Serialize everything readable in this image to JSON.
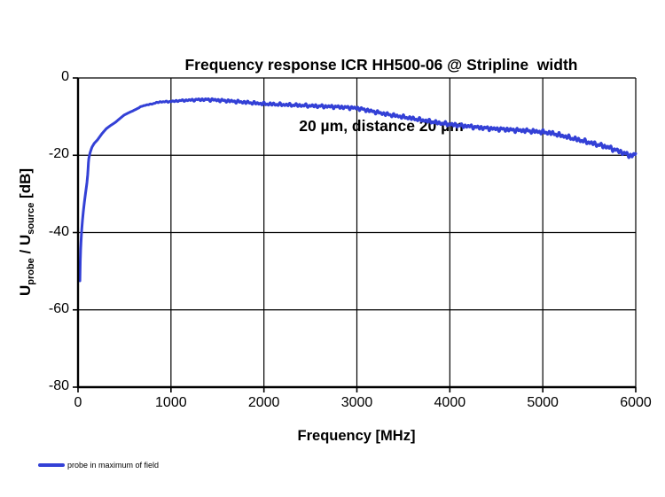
{
  "title": {
    "line1": "Frequency response ICR HH500-06 @ Stripline  width",
    "line2": "20 µm, distance 20 µm"
  },
  "axes": {
    "x_label": "Frequency [MHz]",
    "y_label_parts": [
      {
        "text": "U"
      },
      {
        "text": "probe",
        "sub": true
      },
      {
        "text": " / U"
      },
      {
        "text": "source",
        "sub": true
      },
      {
        "text": " [dB]"
      }
    ]
  },
  "legend": [
    {
      "label": "probe in maximum of field",
      "color": "#3340D6"
    }
  ],
  "colors": {
    "series_blue": "#3340D6",
    "axis_black": "#000000",
    "background": "#ffffff"
  },
  "chart_data": {
    "type": "line",
    "title": "Frequency response ICR HH500-06 @ Stripline width 20 µm, distance 20 µm",
    "xlabel": "Frequency [MHz]",
    "ylabel": "U_probe / U_source [dB]",
    "xlim": [
      0,
      6000
    ],
    "ylim": [
      -80,
      0
    ],
    "x_ticks": [
      0,
      1000,
      2000,
      3000,
      4000,
      5000,
      6000
    ],
    "y_ticks": [
      0,
      -20,
      -40,
      -60,
      -80
    ],
    "grid": true,
    "legend_position": "bottom-left",
    "series": [
      {
        "name": "probe in maximum of field",
        "color": "#3340D6",
        "points": [
          [
            20,
            -52.5
          ],
          [
            24,
            -47.5
          ],
          [
            28,
            -44.5
          ],
          [
            33,
            -42.0
          ],
          [
            40,
            -39.2
          ],
          [
            48,
            -36.8
          ],
          [
            58,
            -34.3
          ],
          [
            70,
            -31.8
          ],
          [
            82,
            -29.6
          ],
          [
            95,
            -27.3
          ],
          [
            105,
            -24.8
          ],
          [
            114,
            -21.1
          ],
          [
            130,
            -19.3
          ],
          [
            150,
            -17.9
          ],
          [
            175,
            -16.9
          ],
          [
            210,
            -16.0
          ],
          [
            258,
            -14.4
          ],
          [
            305,
            -13.1
          ],
          [
            350,
            -12.3
          ],
          [
            401,
            -11.5
          ],
          [
            450,
            -10.5
          ],
          [
            496,
            -9.6
          ],
          [
            545,
            -9.0
          ],
          [
            591,
            -8.5
          ],
          [
            640,
            -7.9
          ],
          [
            687,
            -7.3
          ],
          [
            735,
            -7.0
          ],
          [
            780,
            -6.8
          ],
          [
            830,
            -6.5
          ],
          [
            878,
            -6.2
          ],
          [
            940,
            -6.15
          ],
          [
            1000,
            -6.1
          ],
          [
            1080,
            -5.9
          ],
          [
            1150,
            -5.8
          ],
          [
            1230,
            -5.7
          ],
          [
            1300,
            -5.6
          ],
          [
            1380,
            -5.6
          ],
          [
            1450,
            -5.65
          ],
          [
            1530,
            -5.8
          ],
          [
            1600,
            -5.9
          ],
          [
            1700,
            -6.1
          ],
          [
            1800,
            -6.3
          ],
          [
            1900,
            -6.5
          ],
          [
            2000,
            -6.7
          ],
          [
            2100,
            -6.8
          ],
          [
            2200,
            -6.9
          ],
          [
            2300,
            -7.0
          ],
          [
            2400,
            -7.1
          ],
          [
            2500,
            -7.2
          ],
          [
            2600,
            -7.3
          ],
          [
            2700,
            -7.4
          ],
          [
            2800,
            -7.5
          ],
          [
            2900,
            -7.65
          ],
          [
            3000,
            -7.8
          ],
          [
            3100,
            -8.3
          ],
          [
            3200,
            -8.8
          ],
          [
            3300,
            -9.3
          ],
          [
            3400,
            -9.7
          ],
          [
            3500,
            -10.1
          ],
          [
            3600,
            -10.5
          ],
          [
            3700,
            -10.9
          ],
          [
            3800,
            -11.3
          ],
          [
            3900,
            -11.7
          ],
          [
            4000,
            -12.0
          ],
          [
            4100,
            -12.3
          ],
          [
            4200,
            -12.5
          ],
          [
            4300,
            -12.8
          ],
          [
            4400,
            -13.0
          ],
          [
            4500,
            -13.2
          ],
          [
            4600,
            -13.3
          ],
          [
            4700,
            -13.5
          ],
          [
            4800,
            -13.6
          ],
          [
            4900,
            -13.8
          ],
          [
            5000,
            -14.0
          ],
          [
            5100,
            -14.3
          ],
          [
            5200,
            -14.9
          ],
          [
            5300,
            -15.5
          ],
          [
            5400,
            -16.1
          ],
          [
            5500,
            -16.7
          ],
          [
            5600,
            -17.3
          ],
          [
            5700,
            -17.9
          ],
          [
            5800,
            -18.8
          ],
          [
            5860,
            -19.3
          ],
          [
            5920,
            -19.9
          ],
          [
            5960,
            -20.2
          ],
          [
            6000,
            -19.5
          ]
        ]
      }
    ],
    "noise_envelope": {
      "ramp_start_mhz": 550,
      "ramp_width_mhz": 900,
      "base_db": 0.35,
      "growth_db": 0.35
    }
  }
}
